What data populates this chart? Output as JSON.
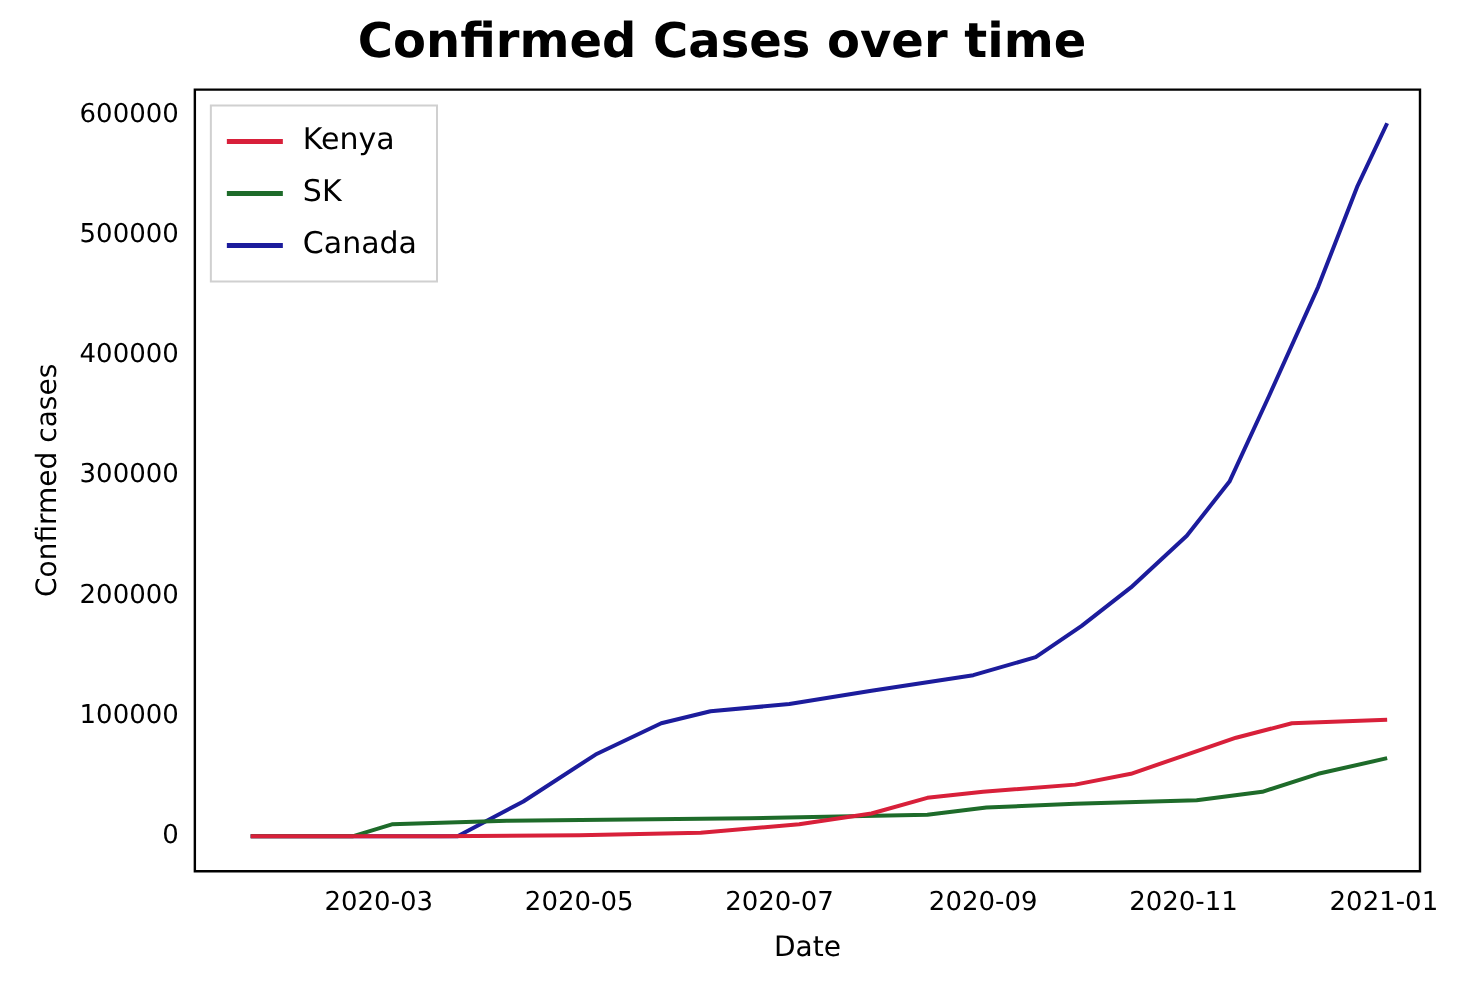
{
  "chart_data": {
    "type": "line",
    "title": "Confirmed Cases over time",
    "xlabel": "Date",
    "ylabel": "Confirmed cases",
    "legend": "top left",
    "grid": false,
    "xlim": [
      "2020-01-05",
      "2021-01-12"
    ],
    "xticks": [
      "2020-03",
      "2020-05",
      "2020-07",
      "2020-09",
      "2020-11",
      "2021-01"
    ],
    "ylim": [
      -29000,
      621000
    ],
    "yticks": [
      0,
      100000,
      200000,
      300000,
      400000,
      500000,
      600000
    ],
    "series": [
      {
        "name": "Kenya",
        "color": "#d8203a",
        "x": [
          "2020-01-22",
          "2020-03-20",
          "2020-05-01",
          "2020-06-07",
          "2020-07-07",
          "2020-07-29",
          "2020-08-15",
          "2020-09-01",
          "2020-09-29",
          "2020-10-16",
          "2020-11-02",
          "2020-11-17",
          "2020-12-04",
          "2021-01-02"
        ],
        "values": [
          0,
          0,
          1000,
          3000,
          10000,
          19000,
          32000,
          37000,
          43000,
          52000,
          68000,
          82000,
          94000,
          97000
        ]
      },
      {
        "name": "SK",
        "color": "#1e6b2a",
        "x": [
          "2020-01-22",
          "2020-02-22",
          "2020-03-05",
          "2020-04-09",
          "2020-06-22",
          "2020-08-15",
          "2020-09-02",
          "2020-09-29",
          "2020-11-05",
          "2020-11-25",
          "2020-12-12",
          "2021-01-02"
        ],
        "values": [
          0,
          0,
          10000,
          13000,
          15000,
          18000,
          24000,
          27000,
          30000,
          37000,
          52000,
          65000
        ]
      },
      {
        "name": "Canada",
        "color": "#1c1c9c",
        "x": [
          "2020-01-22",
          "2020-03-25",
          "2020-04-14",
          "2020-05-06",
          "2020-05-26",
          "2020-06-10",
          "2020-07-04",
          "2020-07-29",
          "2020-08-29",
          "2020-09-17",
          "2020-10-01",
          "2020-10-16",
          "2020-11-02",
          "2020-11-15",
          "2020-11-27",
          "2020-12-12",
          "2020-12-24",
          "2021-01-02"
        ],
        "values": [
          0,
          0,
          29000,
          68000,
          94000,
          104000,
          110000,
          121000,
          134000,
          149000,
          175000,
          207000,
          250000,
          295000,
          366000,
          457000,
          541000,
          593000
        ]
      }
    ]
  }
}
